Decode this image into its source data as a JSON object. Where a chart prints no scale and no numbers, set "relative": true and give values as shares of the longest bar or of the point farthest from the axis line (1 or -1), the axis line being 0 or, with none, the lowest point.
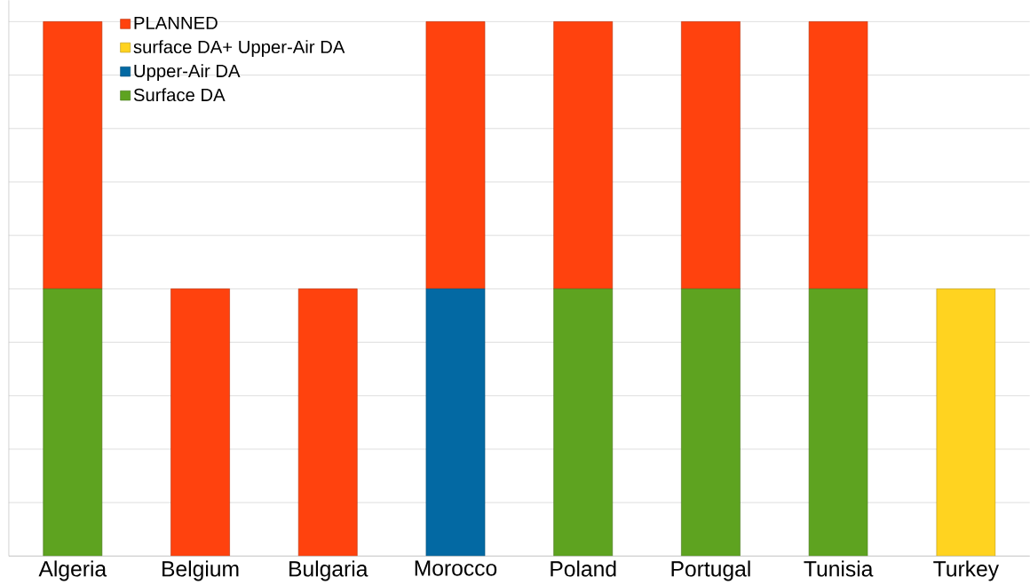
{
  "chart_data": {
    "type": "bar",
    "stacked": true,
    "relative": true,
    "grid": "y",
    "legend": "top left",
    "categories": [
      "Algeria",
      "Belgium",
      "Bulgaria",
      "Morocco",
      "Poland",
      "Portugal",
      "Tunisia",
      "Turkey"
    ],
    "series": [
      {
        "name": "Surface DA",
        "color": "#5ea320",
        "values": [
          0.5,
          null,
          null,
          null,
          0.5,
          0.5,
          0.5,
          null
        ]
      },
      {
        "name": "Upper-Air DA",
        "color": "#0369a3",
        "values": [
          null,
          null,
          null,
          0.5,
          null,
          null,
          null,
          null
        ]
      },
      {
        "name": "surface DA+ Upper-Air DA",
        "color": "#ffd320",
        "values": [
          null,
          null,
          null,
          null,
          null,
          null,
          null,
          0.5
        ]
      },
      {
        "name": "PLANNED",
        "color": "#ff420e",
        "values": [
          0.5,
          0.5,
          0.5,
          0.5,
          0.5,
          0.5,
          0.5,
          null
        ]
      }
    ]
  }
}
